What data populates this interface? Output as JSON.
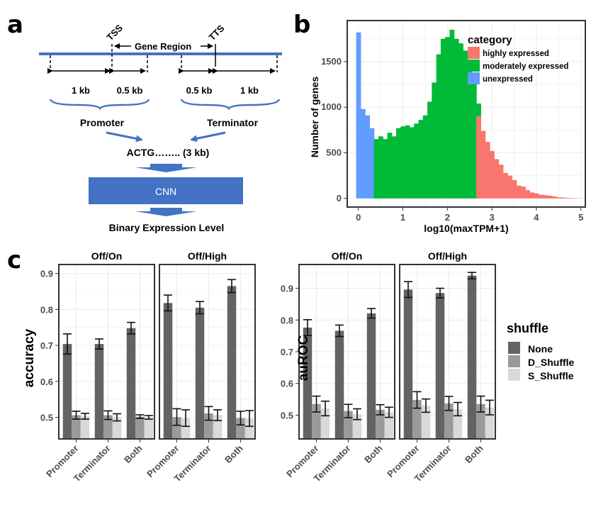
{
  "panels": {
    "a": {
      "letter": "a"
    },
    "b": {
      "letter": "b"
    },
    "c": {
      "letter": "c"
    }
  },
  "diagram_a": {
    "tss": "TSS",
    "tts": "TTS",
    "gene_region": "Gene Region",
    "segments": [
      "1 kb",
      "0.5 kb",
      "0.5 kb",
      "1 kb"
    ],
    "promoter": "Promoter",
    "terminator": "Terminator",
    "sequence": "ACTG…….. (3 kb)",
    "model": "CNN",
    "output": "Binary Expression Level",
    "accent": "#4472c4"
  },
  "chart_data": [
    {
      "id": "histogram",
      "type": "bar",
      "subtype": "histogram",
      "xlabel": "log10(maxTPM+1)",
      "ylabel": "Number of genes",
      "xlim": [
        -0.25,
        5.1
      ],
      "ylim": [
        -95,
        1950
      ],
      "xticks": [
        "0",
        "1",
        "2",
        "3",
        "4",
        "5"
      ],
      "yticks": [
        "0",
        "500",
        "1000",
        "1500"
      ],
      "grid": true,
      "legend": {
        "title": "category",
        "position": "top-right",
        "items": [
          {
            "label": "highly expressed",
            "color": "#f8766d"
          },
          {
            "label": "moderately expressed",
            "color": "#00ba38"
          },
          {
            "label": "unexpressed",
            "color": "#619cff"
          }
        ]
      },
      "bin_width": 0.1,
      "bin_start": -0.05,
      "series": [
        {
          "name": "unexpressed",
          "color": "#619cff",
          "values": [
            1820,
            980,
            910,
            770,
            70,
            40
          ]
        },
        {
          "name": "moderately expressed",
          "color": "#00ba38",
          "start_bin": 3,
          "values": [
            0,
            650,
            680,
            650,
            720,
            680,
            770,
            790,
            800,
            780,
            820,
            860,
            910,
            1060,
            1270,
            1580,
            1750,
            1770,
            1850,
            1750,
            1700,
            1620,
            1400,
            1330,
            1040,
            0
          ]
        },
        {
          "name": "highly expressed",
          "color": "#f8766d",
          "start_bin": 27,
          "values": [
            900,
            740,
            620,
            520,
            430,
            370,
            280,
            250,
            200,
            140,
            130,
            90,
            65,
            55,
            40,
            35,
            30,
            22,
            12,
            10,
            6,
            3,
            2,
            1
          ]
        }
      ]
    },
    {
      "id": "accuracy",
      "type": "bar",
      "ylabel": "accuracy",
      "ylim": [
        0.44,
        0.925
      ],
      "yticks": [
        "0.5",
        "0.6",
        "0.7",
        "0.8",
        "0.9"
      ],
      "facets": [
        "Off/On",
        "Off/High"
      ],
      "categories": [
        "Promoter",
        "Terminator",
        "Both"
      ],
      "grid": true,
      "series": [
        {
          "name": "None",
          "color": "#636363",
          "values": [
            [
              0.704,
              0.704,
              0.748
            ],
            [
              0.818,
              0.805,
              0.865
            ]
          ],
          "errors": [
            [
              0.028,
              0.014,
              0.016
            ],
            [
              0.022,
              0.017,
              0.018
            ]
          ]
        },
        {
          "name": "D_Shuffle",
          "color": "#9a9a9a",
          "values": [
            [
              0.506,
              0.506,
              0.502
            ],
            [
              0.501,
              0.511,
              0.498
            ]
          ],
          "errors": [
            [
              0.011,
              0.012,
              0.005
            ],
            [
              0.023,
              0.019,
              0.019
            ]
          ]
        },
        {
          "name": "S_Shuffle",
          "color": "#d9d9d9",
          "values": [
            [
              0.503,
              0.5,
              0.5
            ],
            [
              0.498,
              0.506,
              0.497
            ]
          ],
          "errors": [
            [
              0.008,
              0.01,
              0.005
            ],
            [
              0.023,
              0.015,
              0.022
            ]
          ]
        }
      ]
    },
    {
      "id": "auroc",
      "type": "bar",
      "ylabel": "auROC",
      "ylim": [
        0.425,
        0.975
      ],
      "yticks": [
        "0.5",
        "0.6",
        "0.7",
        "0.8",
        "0.9"
      ],
      "facets": [
        "Off/On",
        "Off/High"
      ],
      "categories": [
        "Promoter",
        "Terminator",
        "Both"
      ],
      "grid": true,
      "legend": {
        "title": "shuffle",
        "position": "right",
        "items": [
          {
            "label": "None",
            "color": "#636363"
          },
          {
            "label": "D_Shuffle",
            "color": "#9a9a9a"
          },
          {
            "label": "S_Shuffle",
            "color": "#d9d9d9"
          }
        ]
      },
      "series": [
        {
          "name": "None",
          "color": "#636363",
          "values": [
            [
              0.776,
              0.766,
              0.821
            ],
            [
              0.896,
              0.885,
              0.94
            ]
          ],
          "errors": [
            [
              0.025,
              0.018,
              0.015
            ],
            [
              0.025,
              0.015,
              0.01
            ]
          ]
        },
        {
          "name": "D_Shuffle",
          "color": "#9a9a9a",
          "values": [
            [
              0.535,
              0.513,
              0.517
            ],
            [
              0.548,
              0.537,
              0.535
            ]
          ],
          "errors": [
            [
              0.025,
              0.021,
              0.016
            ],
            [
              0.026,
              0.022,
              0.025
            ]
          ]
        },
        {
          "name": "S_Shuffle",
          "color": "#d9d9d9",
          "values": [
            [
              0.521,
              0.503,
              0.509
            ],
            [
              0.53,
              0.519,
              0.524
            ]
          ],
          "errors": [
            [
              0.023,
              0.017,
              0.016
            ],
            [
              0.021,
              0.021,
              0.023
            ]
          ]
        }
      ]
    }
  ]
}
